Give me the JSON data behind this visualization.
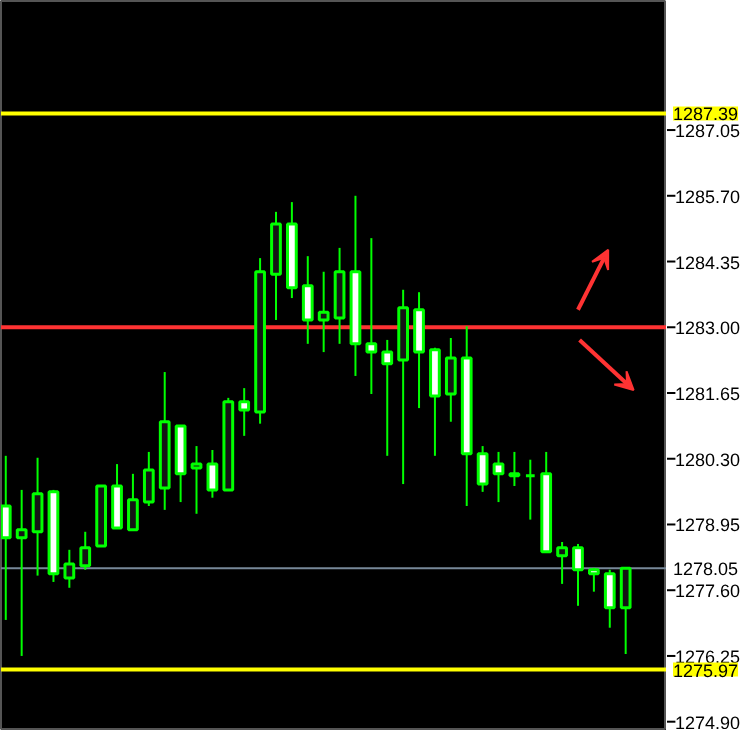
{
  "chart_data": {
    "type": "candlestick",
    "color": "#00ff00",
    "categories": [
      null,
      null,
      null,
      null,
      null,
      null,
      null,
      null,
      null,
      null,
      null,
      null,
      null,
      null,
      null,
      null,
      null,
      null,
      null,
      null,
      null,
      null,
      null,
      null,
      null,
      null,
      null,
      null,
      null,
      null,
      null,
      null,
      null,
      null,
      null,
      null,
      null,
      null,
      null,
      null
    ],
    "ohlc": [
      [
        1279.33,
        1280.36,
        1276.99,
        1278.68
      ],
      [
        1278.68,
        1279.66,
        1276.25,
        1278.84
      ],
      [
        1278.8,
        1280.32,
        1277.9,
        1279.58
      ],
      [
        1279.62,
        1279.66,
        1277.77,
        1277.94
      ],
      [
        1277.85,
        1278.43,
        1277.65,
        1278.14
      ],
      [
        1278.1,
        1278.8,
        1278.02,
        1278.47
      ],
      [
        1278.51,
        1279.74,
        1278.51,
        1279.74
      ],
      [
        1279.74,
        1280.19,
        1278.88,
        1278.88
      ],
      [
        1278.84,
        1279.99,
        1278.84,
        1279.46
      ],
      [
        1279.41,
        1280.44,
        1279.33,
        1280.07
      ],
      [
        1279.7,
        1282.08,
        1279.25,
        1281.06
      ],
      [
        1280.97,
        1280.97,
        1279.41,
        1279.99
      ],
      [
        1280.11,
        1280.56,
        1279.17,
        1280.19
      ],
      [
        1280.19,
        1280.48,
        1279.5,
        1279.66
      ],
      [
        1279.66,
        1281.55,
        1279.66,
        1281.47
      ],
      [
        1281.47,
        1281.75,
        1280.77,
        1281.3
      ],
      [
        1281.26,
        1284.42,
        1281.02,
        1284.14
      ],
      [
        1284.09,
        1285.37,
        1283.15,
        1285.12
      ],
      [
        1285.12,
        1285.57,
        1283.6,
        1283.81
      ],
      [
        1283.85,
        1284.46,
        1282.66,
        1283.15
      ],
      [
        1283.15,
        1284.14,
        1282.49,
        1283.31
      ],
      [
        1283.19,
        1284.63,
        1282.66,
        1284.14
      ],
      [
        1284.14,
        1285.7,
        1282.0,
        1282.66
      ],
      [
        1282.66,
        1284.83,
        1281.63,
        1282.49
      ],
      [
        1282.49,
        1282.74,
        1280.36,
        1282.25
      ],
      [
        1282.33,
        1283.77,
        1279.78,
        1283.4
      ],
      [
        1283.36,
        1283.72,
        1281.34,
        1282.49
      ],
      [
        1282.54,
        1282.58,
        1280.36,
        1281.59
      ],
      [
        1281.63,
        1282.78,
        1281.06,
        1282.37
      ],
      [
        1282.37,
        1283.02,
        1279.33,
        1280.4
      ],
      [
        1280.4,
        1280.56,
        1279.62,
        1279.78
      ],
      [
        1280.19,
        1280.44,
        1279.41,
        1279.99
      ],
      [
        1279.99,
        1280.44,
        1279.74,
        1279.95
      ],
      [
        1279.95,
        1280.28,
        1279.05,
        1279.95
      ],
      [
        1279.99,
        1280.44,
        1278.39,
        1278.39
      ],
      [
        1278.31,
        1278.59,
        1277.73,
        1278.47
      ],
      [
        1278.47,
        1278.55,
        1277.28,
        1278.02
      ],
      [
        1278.02,
        1278.06,
        1277.57,
        1277.94
      ],
      [
        1277.94,
        1278.02,
        1276.83,
        1277.24
      ],
      [
        1277.24,
        1278.05,
        1276.29,
        1278.05
      ]
    ],
    "ylim": [
      1274.75,
      1289.7
    ],
    "yticks": [
      {
        "value": 1287.05,
        "label": "1287.05"
      },
      {
        "value": 1285.7,
        "label": "1285.70"
      },
      {
        "value": 1284.35,
        "label": "1284.35"
      },
      {
        "value": 1283.0,
        "label": "1283.00"
      },
      {
        "value": 1281.65,
        "label": "1281.65"
      },
      {
        "value": 1280.3,
        "label": "1280.30"
      },
      {
        "value": 1278.95,
        "label": "1278.95"
      },
      {
        "value": 1277.6,
        "label": "1277.60"
      },
      {
        "value": 1276.25,
        "label": "1276.25"
      },
      {
        "value": 1274.9,
        "label": "1274.90"
      }
    ],
    "ref_lines": [
      {
        "axis": "y",
        "value": 1287.39,
        "label": "1287.39",
        "color": "#ffff00"
      },
      {
        "axis": "y",
        "value": 1275.97,
        "label": "1275.97",
        "color": "#ffff00"
      },
      {
        "axis": "y",
        "value": 1278.05,
        "label": "1278.05",
        "color": "#778899"
      },
      {
        "axis": "y",
        "value": 1283.0,
        "label": null,
        "color": "#ff3333"
      }
    ],
    "grid": false
  }
}
